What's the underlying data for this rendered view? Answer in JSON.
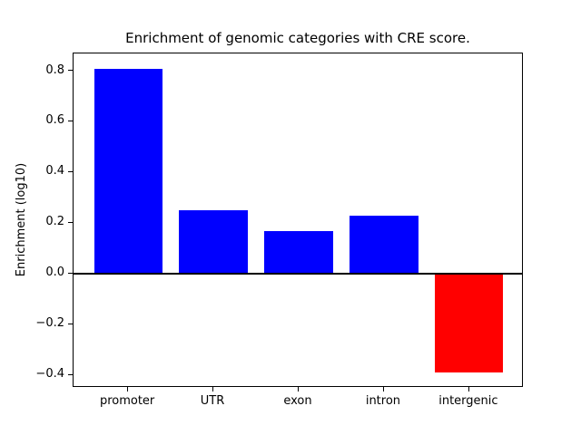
{
  "figure": {
    "background": "#ffffff",
    "axis_color": "#000000"
  },
  "chart_data": {
    "type": "bar",
    "title": "Enrichment of genomic categories with CRE score.",
    "xlabel": "",
    "ylabel": "Enrichment (log10)",
    "categories": [
      "promoter",
      "UTR",
      "exon",
      "intron",
      "intergenic"
    ],
    "values": [
      0.81,
      0.25,
      0.17,
      0.23,
      -0.39
    ],
    "bar_colors": [
      "#0000ff",
      "#0000ff",
      "#0000ff",
      "#0000ff",
      "#ff0000"
    ],
    "positive_color": "#0000ff",
    "negative_color": "#ff0000",
    "bar_width_fraction": 0.8,
    "ylim": [
      -0.45,
      0.87
    ],
    "xlim": [
      -0.64,
      4.64
    ],
    "yticks": [
      {
        "value": 0.8,
        "label": "0.8"
      },
      {
        "value": 0.6,
        "label": "0.6"
      },
      {
        "value": 0.4,
        "label": "0.4"
      },
      {
        "value": 0.2,
        "label": "0.2"
      },
      {
        "value": 0.0,
        "label": "0.0"
      },
      {
        "value": -0.2,
        "label": "−0.2"
      },
      {
        "value": -0.4,
        "label": "−0.4"
      }
    ],
    "zero_line": true,
    "zero_line_color": "#000000",
    "grid": false,
    "legend": "none"
  }
}
